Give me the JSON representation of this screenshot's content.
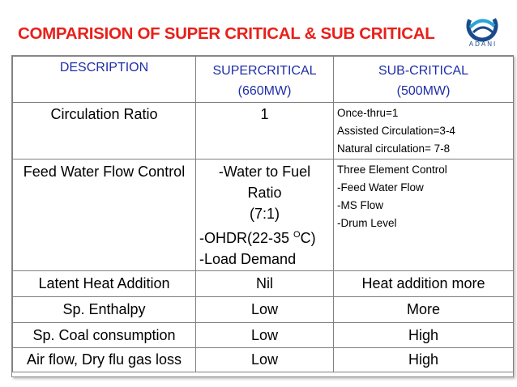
{
  "slide": {
    "title": "COMPARISION OF SUPER CRITICAL & SUB CRITICAL",
    "logo_text": "ADANI"
  },
  "table": {
    "headers": [
      {
        "label": "DESCRIPTION"
      },
      {
        "label": "SUPERCRITICAL",
        "sub": "(660MW)"
      },
      {
        "label": "SUB-CRITICAL",
        "sub": "(500MW)"
      }
    ],
    "rows": [
      {
        "description": "Circulation Ratio",
        "supercritical": [
          "1"
        ],
        "subcritical": [
          "Once-thru=1",
          "Assisted Circulation=3-4",
          "Natural circulation= 7-8"
        ]
      },
      {
        "description": "Feed Water Flow Control",
        "supercritical": [
          "-Water to Fuel",
          "Ratio",
          "(7:1)",
          "-OHDR(22-35 ",
          "O",
          "C)",
          "-Load Demand"
        ],
        "subcritical": [
          "Three Element Control",
          "-Feed Water Flow",
          "-MS Flow",
          "-Drum Level"
        ]
      },
      {
        "description": "Latent Heat Addition",
        "supercritical": [
          "Nil"
        ],
        "subcritical": [
          "Heat addition more"
        ]
      },
      {
        "description": "Sp. Enthalpy",
        "supercritical": [
          "Low"
        ],
        "subcritical": [
          "More"
        ]
      },
      {
        "description": "Sp. Coal consumption",
        "supercritical": [
          "Low"
        ],
        "subcritical": [
          "High"
        ]
      },
      {
        "description": "Air flow, Dry flu gas loss",
        "supercritical": [
          "Low"
        ],
        "subcritical": [
          "High"
        ]
      }
    ]
  },
  "colors": {
    "title": "#e8201b",
    "header_text": "#1f2ea8",
    "logo": "#1a4a8c"
  }
}
